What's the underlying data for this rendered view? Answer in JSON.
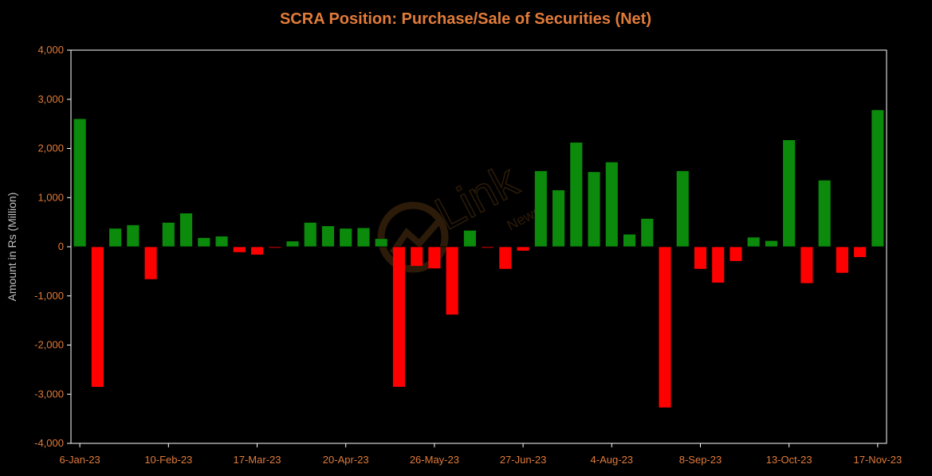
{
  "chart_data": {
    "type": "bar",
    "title": "SCRA Position: Purchase/Sale of Securities (Net)",
    "ylabel": "Amount in Rs (Million)",
    "xlabel": "",
    "ylim": [
      -4000,
      4000
    ],
    "yticks": [
      "4,000",
      "3,000",
      "2,000",
      "1,000",
      "0",
      "-1,000",
      "-2,000",
      "-3,000",
      "-4,000"
    ],
    "ytick_values": [
      4000,
      3000,
      2000,
      1000,
      0,
      -1000,
      -2000,
      -3000,
      -4000
    ],
    "x_tick_labels": [
      {
        "index": 0,
        "label": "6-Jan-23"
      },
      {
        "index": 5,
        "label": "10-Feb-23"
      },
      {
        "index": 10,
        "label": "17-Mar-23"
      },
      {
        "index": 15,
        "label": "20-Apr-23"
      },
      {
        "index": 20,
        "label": "26-May-23"
      },
      {
        "index": 25,
        "label": "27-Jun-23"
      },
      {
        "index": 30,
        "label": "4-Aug-23"
      },
      {
        "index": 35,
        "label": "8-Sep-23"
      },
      {
        "index": 40,
        "label": "13-Oct-23"
      },
      {
        "index": 45,
        "label": "17-Nov-23"
      }
    ],
    "values": [
      2600,
      -2850,
      370,
      440,
      -660,
      490,
      680,
      180,
      210,
      -110,
      -160,
      -20,
      110,
      490,
      420,
      370,
      380,
      160,
      -2850,
      -390,
      -440,
      -1380,
      330,
      -20,
      -450,
      -80,
      1540,
      1150,
      2120,
      1520,
      1720,
      250,
      570,
      -3270,
      1540,
      -450,
      -730,
      -290,
      190,
      120,
      2170,
      -740,
      1350,
      -530,
      -210,
      2780
    ],
    "colors": {
      "positive": "#0b8a0b",
      "negative": "#ff0000",
      "axis": "#ffffff",
      "text": "#e07b39",
      "ylabel": "#bfbfbf"
    },
    "grid": false,
    "legend": "none"
  },
  "watermark": {
    "main": "Link",
    "sub": "News"
  }
}
